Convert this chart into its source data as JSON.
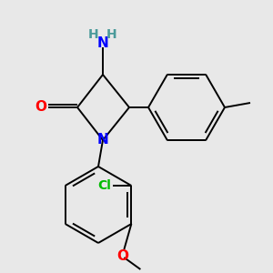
{
  "background_color": "#e8e8e8",
  "atom_colors": {
    "N": "#0000ff",
    "O": "#ff0000",
    "Cl": "#00bb00",
    "C": "#000000",
    "H": "#4a9a9a"
  },
  "figsize": [
    3.0,
    3.0
  ],
  "dpi": 100,
  "lw": 1.4
}
